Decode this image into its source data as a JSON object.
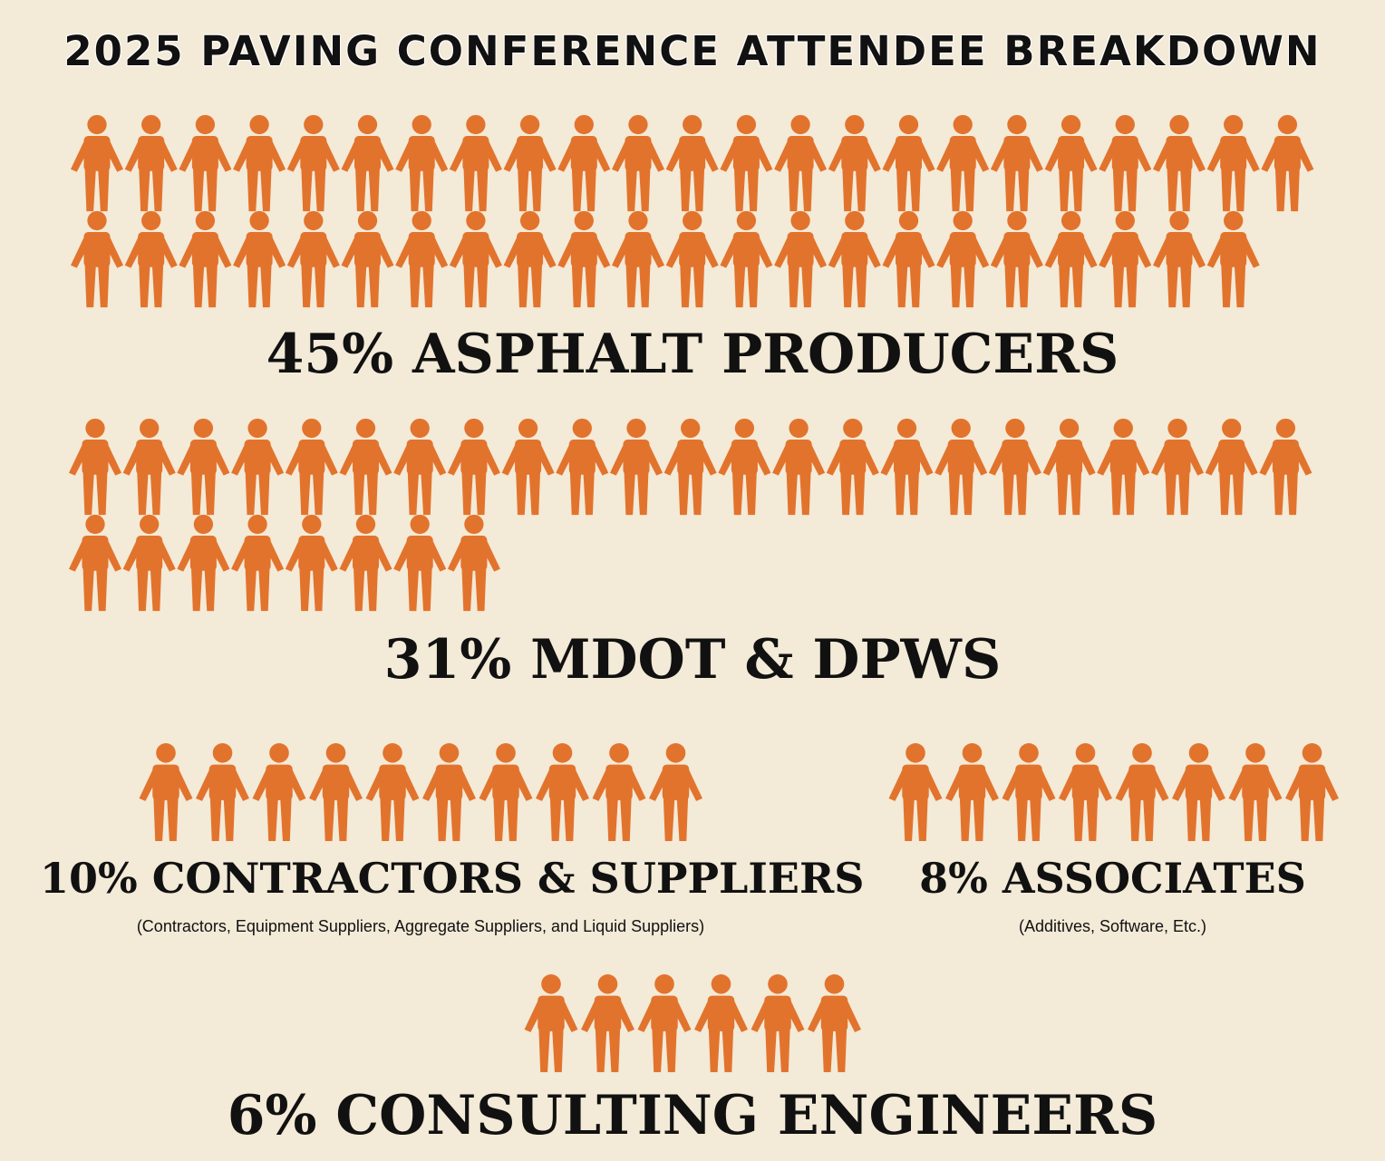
{
  "title": "2025 PAVING CONFERENCE ATTENDEE BREAKDOWN",
  "colors": {
    "background": "#f3ead7",
    "figure": "#e2732d",
    "text": "#111111"
  },
  "icon": "person-icon",
  "chart_data": {
    "type": "pictograph",
    "unit": "1 icon = 1%",
    "categories": [
      {
        "key": "asphalt",
        "label": "45% ASPHALT PRODUCERS",
        "percent": 45,
        "note": ""
      },
      {
        "key": "mdot",
        "label": "31% MDOT & DPWS",
        "percent": 31,
        "note": ""
      },
      {
        "key": "contractors",
        "label": "10% CONTRACTORS & SUPPLIERS",
        "percent": 10,
        "note": "(Contractors, Equipment Suppliers, Aggregate Suppliers, and Liquid Suppliers)"
      },
      {
        "key": "associates",
        "label": "8% ASSOCIATES",
        "percent": 8,
        "note": "(Additives, Software, Etc.)"
      },
      {
        "key": "engineers",
        "label": "6% CONSULTING ENGINEERS",
        "percent": 6,
        "note": ""
      }
    ]
  }
}
